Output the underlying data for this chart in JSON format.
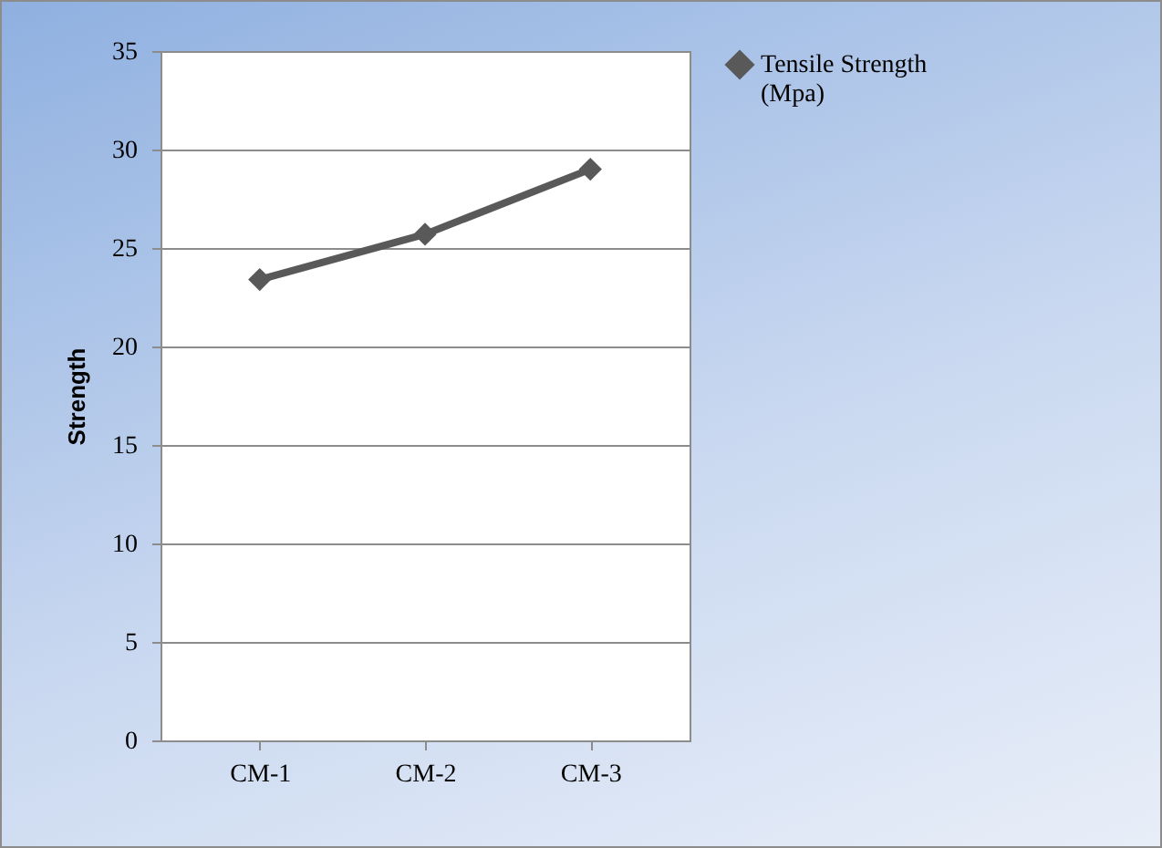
{
  "chart_data": {
    "type": "line",
    "ylabel": "Strength",
    "categories": [
      "CM-1",
      "CM-2",
      "CM-3"
    ],
    "series": [
      {
        "name": "Tensile Strength (Mpa)",
        "color": "#595959",
        "values": [
          23.4,
          25.7,
          29.0
        ]
      }
    ],
    "ylim": [
      0,
      35
    ],
    "yticks": [
      0,
      5,
      10,
      15,
      20,
      25,
      30,
      35
    ],
    "grid": "y",
    "legend": "right",
    "marker": "diamond"
  }
}
